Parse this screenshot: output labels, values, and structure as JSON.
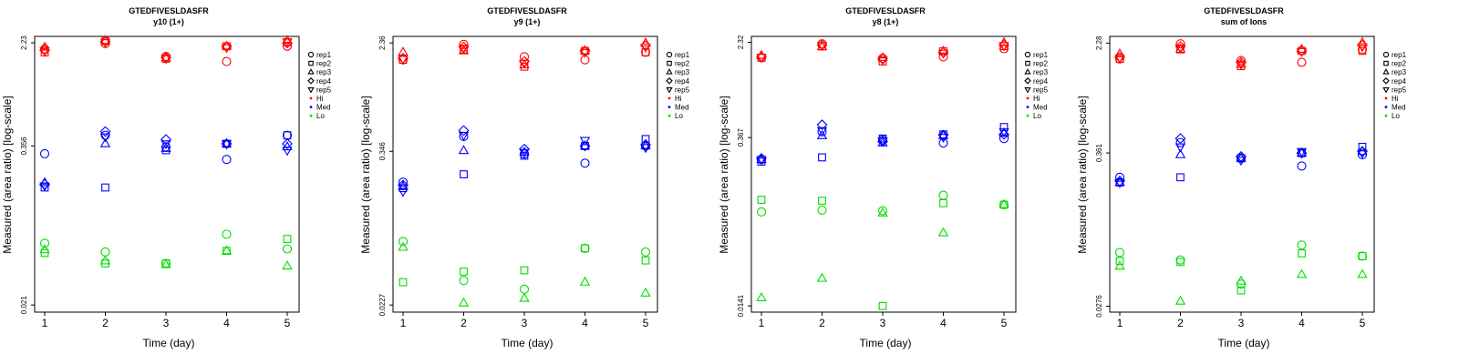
{
  "chart_data": [
    {
      "type": "scatter",
      "title": "GTEDFIVESLDASFR",
      "subtitle": "y10 (1+)",
      "xlabel": "Time (day)",
      "ylabel": "Measured (area ratio) [log-scale]",
      "x_ticks": [
        "1",
        "2",
        "3",
        "4",
        "5"
      ],
      "y_scale": "log",
      "y_ticks": [
        {
          "value": 2.23,
          "label": "2.23"
        },
        {
          "value": 0.356,
          "label": "0.356"
        },
        {
          "value": 0.021,
          "label": "0.021"
        }
      ],
      "ylim": [
        0.0185,
        2.5
      ],
      "legend": {
        "position": "right",
        "shapes": [
          "rep1",
          "rep2",
          "rep3",
          "rep4",
          "rep5"
        ],
        "colors": [
          {
            "label": "Hi",
            "color": "#ff0000"
          },
          {
            "label": "Med",
            "color": "#0000ff"
          },
          {
            "label": "Lo",
            "color": "#00dd00"
          }
        ]
      },
      "series": [
        {
          "group": "Hi",
          "rep": "rep1",
          "values": [
            2.0,
            2.2,
            1.75,
            1.6,
            2.1
          ]
        },
        {
          "group": "Hi",
          "rep": "rep2",
          "values": [
            1.88,
            2.3,
            1.68,
            2.1,
            2.25
          ]
        },
        {
          "group": "Hi",
          "rep": "rep3",
          "values": [
            2.06,
            2.32,
            1.7,
            2.1,
            2.32
          ]
        },
        {
          "group": "Hi",
          "rep": "rep4",
          "values": [
            1.95,
            2.28,
            1.72,
            2.08,
            2.22
          ]
        },
        {
          "group": "Hi",
          "rep": "rep5",
          "values": [
            1.93,
            2.25,
            1.69,
            2.05,
            2.28
          ]
        },
        {
          "group": "Med",
          "rep": "rep1",
          "values": [
            0.31,
            0.43,
            0.35,
            0.28,
            0.43
          ]
        },
        {
          "group": "Med",
          "rep": "rep2",
          "values": [
            0.17,
            0.17,
            0.33,
            0.37,
            0.43
          ]
        },
        {
          "group": "Med",
          "rep": "rep3",
          "values": [
            0.185,
            0.37,
            0.34,
            0.37,
            0.35
          ]
        },
        {
          "group": "Med",
          "rep": "rep4",
          "values": [
            0.18,
            0.46,
            0.4,
            0.37,
            0.37
          ]
        },
        {
          "group": "Med",
          "rep": "rep5",
          "values": [
            0.175,
            0.42,
            0.37,
            0.37,
            0.33
          ]
        },
        {
          "group": "Lo",
          "rep": "rep1",
          "values": [
            0.063,
            0.054,
            0.044,
            0.074,
            0.057
          ]
        },
        {
          "group": "Lo",
          "rep": "rep2",
          "values": [
            0.053,
            0.044,
            0.044,
            0.055,
            0.068
          ]
        },
        {
          "group": "Lo",
          "rep": "rep3",
          "values": [
            0.056,
            0.046,
            0.043,
            0.055,
            0.042
          ]
        }
      ]
    },
    {
      "type": "scatter",
      "title": "GTEDFIVESLDASFR",
      "subtitle": "y9 (1+)",
      "xlabel": "Time (day)",
      "ylabel": "Measured (area ratio) [log-scale]",
      "x_ticks": [
        "1",
        "2",
        "3",
        "4",
        "5"
      ],
      "y_scale": "log",
      "y_ticks": [
        {
          "value": 2.36,
          "label": "2.36"
        },
        {
          "value": 0.346,
          "label": "0.346"
        },
        {
          "value": 0.0227,
          "label": "0.0227"
        }
      ],
      "ylim": [
        0.02,
        2.65
      ],
      "legend": {
        "position": "right",
        "shapes": [
          "rep1",
          "rep2",
          "rep3",
          "rep4",
          "rep5"
        ],
        "colors": [
          {
            "label": "Hi",
            "color": "#ff0000"
          },
          {
            "label": "Med",
            "color": "#0000ff"
          },
          {
            "label": "Lo",
            "color": "#00dd00"
          }
        ]
      },
      "series": [
        {
          "group": "Hi",
          "rep": "rep1",
          "values": [
            1.75,
            2.3,
            1.85,
            1.75,
            2.0
          ]
        },
        {
          "group": "Hi",
          "rep": "rep2",
          "values": [
            1.75,
            2.1,
            1.55,
            2.05,
            2.0
          ]
        },
        {
          "group": "Hi",
          "rep": "rep3",
          "values": [
            2.0,
            2.05,
            1.6,
            2.05,
            2.35
          ]
        },
        {
          "group": "Hi",
          "rep": "rep4",
          "values": [
            1.8,
            2.2,
            1.7,
            2.05,
            2.25
          ]
        },
        {
          "group": "Hi",
          "rep": "rep5",
          "values": [
            1.78,
            2.15,
            1.65,
            2.0,
            2.2
          ]
        },
        {
          "group": "Med",
          "rep": "rep1",
          "values": [
            0.2,
            0.45,
            0.33,
            0.28,
            0.38
          ]
        },
        {
          "group": "Med",
          "rep": "rep2",
          "values": [
            0.18,
            0.23,
            0.32,
            0.38,
            0.43
          ]
        },
        {
          "group": "Med",
          "rep": "rep3",
          "values": [
            0.185,
            0.35,
            0.34,
            0.38,
            0.38
          ]
        },
        {
          "group": "Med",
          "rep": "rep4",
          "values": [
            0.19,
            0.5,
            0.36,
            0.38,
            0.39
          ]
        },
        {
          "group": "Med",
          "rep": "rep5",
          "values": [
            0.17,
            0.46,
            0.34,
            0.42,
            0.37
          ]
        },
        {
          "group": "Lo",
          "rep": "rep1",
          "values": [
            0.07,
            0.035,
            0.03,
            0.062,
            0.058
          ]
        },
        {
          "group": "Lo",
          "rep": "rep2",
          "values": [
            0.034,
            0.041,
            0.042,
            0.062,
            0.05
          ]
        },
        {
          "group": "Lo",
          "rep": "rep3",
          "values": [
            0.063,
            0.0235,
            0.0255,
            0.034,
            0.028
          ]
        }
      ]
    },
    {
      "type": "scatter",
      "title": "GTEDFIVESLDASFR",
      "subtitle": "y8 (1+)",
      "xlabel": "Time (day)",
      "ylabel": "Measured (area ratio) [log-scale]",
      "x_ticks": [
        "1",
        "2",
        "3",
        "4",
        "5"
      ],
      "y_scale": "log",
      "y_ticks": [
        {
          "value": 2.32,
          "label": "2.32"
        },
        {
          "value": 0.367,
          "label": "0.367"
        },
        {
          "value": 0.0141,
          "label": "0.0141"
        }
      ],
      "ylim": [
        0.0125,
        2.6
      ],
      "legend": {
        "position": "right",
        "shapes": [
          "rep1",
          "rep2",
          "rep3",
          "rep4",
          "rep5"
        ],
        "colors": [
          {
            "label": "Hi",
            "color": "#ff0000"
          },
          {
            "label": "Med",
            "color": "#0000ff"
          },
          {
            "label": "Lo",
            "color": "#00dd00"
          }
        ]
      },
      "series": [
        {
          "group": "Hi",
          "rep": "rep1",
          "values": [
            1.72,
            2.25,
            1.7,
            1.75,
            2.05
          ]
        },
        {
          "group": "Hi",
          "rep": "rep2",
          "values": [
            1.72,
            2.15,
            1.6,
            1.95,
            2.15
          ]
        },
        {
          "group": "Hi",
          "rep": "rep3",
          "values": [
            1.8,
            2.12,
            1.72,
            1.95,
            2.3
          ]
        },
        {
          "group": "Hi",
          "rep": "rep4",
          "values": [
            1.75,
            2.2,
            1.68,
            1.9,
            2.2
          ]
        },
        {
          "group": "Hi",
          "rep": "rep5",
          "values": [
            1.74,
            2.18,
            1.65,
            1.88,
            2.18
          ]
        },
        {
          "group": "Med",
          "rep": "rep1",
          "values": [
            0.24,
            0.41,
            0.35,
            0.33,
            0.36
          ]
        },
        {
          "group": "Med",
          "rep": "rep2",
          "values": [
            0.23,
            0.25,
            0.36,
            0.39,
            0.45
          ]
        },
        {
          "group": "Med",
          "rep": "rep3",
          "values": [
            0.24,
            0.38,
            0.33,
            0.38,
            0.4
          ]
        },
        {
          "group": "Med",
          "rep": "rep4",
          "values": [
            0.245,
            0.47,
            0.34,
            0.385,
            0.39
          ]
        },
        {
          "group": "Med",
          "rep": "rep5",
          "values": [
            0.24,
            0.42,
            0.345,
            0.37,
            0.41
          ]
        },
        {
          "group": "Lo",
          "rep": "rep1",
          "values": [
            0.087,
            0.09,
            0.089,
            0.12,
            0.1
          ]
        },
        {
          "group": "Lo",
          "rep": "rep2",
          "values": [
            0.11,
            0.108,
            0.0141,
            0.103,
            0.1
          ]
        },
        {
          "group": "Lo",
          "rep": "rep3",
          "values": [
            0.0165,
            0.024,
            0.085,
            0.058,
            0.1
          ]
        }
      ]
    },
    {
      "type": "scatter",
      "title": "GTEDFIVESLDASFR",
      "subtitle": "sum of Ions",
      "xlabel": "Time (day)",
      "ylabel": "Measured (area ratio) [log-scale]",
      "x_ticks": [
        "1",
        "2",
        "3",
        "4",
        "5"
      ],
      "y_scale": "log",
      "y_ticks": [
        {
          "value": 2.28,
          "label": "2.28"
        },
        {
          "value": 0.361,
          "label": "0.361"
        },
        {
          "value": 0.0276,
          "label": "0.0276"
        }
      ],
      "ylim": [
        0.025,
        2.55
      ],
      "legend": {
        "position": "right",
        "shapes": [
          "rep1",
          "rep2",
          "rep3",
          "rep4",
          "rep5"
        ],
        "colors": [
          {
            "label": "Hi",
            "color": "#ff0000"
          },
          {
            "label": "Med",
            "color": "#0000ff"
          },
          {
            "label": "Lo",
            "color": "#00dd00"
          }
        ]
      },
      "series": [
        {
          "group": "Hi",
          "rep": "rep1",
          "values": [
            1.75,
            2.25,
            1.7,
            1.65,
            2.05
          ]
        },
        {
          "group": "Hi",
          "rep": "rep2",
          "values": [
            1.75,
            2.05,
            1.55,
            2.0,
            2.0
          ]
        },
        {
          "group": "Hi",
          "rep": "rep3",
          "values": [
            1.9,
            2.05,
            1.6,
            2.05,
            2.3
          ]
        },
        {
          "group": "Hi",
          "rep": "rep4",
          "values": [
            1.8,
            2.15,
            1.65,
            2.0,
            2.2
          ]
        },
        {
          "group": "Hi",
          "rep": "rep5",
          "values": [
            1.78,
            2.1,
            1.6,
            1.98,
            2.15
          ]
        },
        {
          "group": "Med",
          "rep": "rep1",
          "values": [
            0.24,
            0.43,
            0.33,
            0.29,
            0.35
          ]
        },
        {
          "group": "Med",
          "rep": "rep2",
          "values": [
            0.22,
            0.24,
            0.33,
            0.36,
            0.4
          ]
        },
        {
          "group": "Med",
          "rep": "rep3",
          "values": [
            0.22,
            0.35,
            0.33,
            0.36,
            0.37
          ]
        },
        {
          "group": "Med",
          "rep": "rep4",
          "values": [
            0.225,
            0.46,
            0.34,
            0.36,
            0.37
          ]
        },
        {
          "group": "Med",
          "rep": "rep5",
          "values": [
            0.22,
            0.4,
            0.32,
            0.37,
            0.36
          ]
        },
        {
          "group": "Lo",
          "rep": "rep1",
          "values": [
            0.068,
            0.06,
            0.04,
            0.077,
            0.064
          ]
        },
        {
          "group": "Lo",
          "rep": "rep2",
          "values": [
            0.059,
            0.058,
            0.036,
            0.067,
            0.064
          ]
        },
        {
          "group": "Lo",
          "rep": "rep3",
          "values": [
            0.054,
            0.03,
            0.042,
            0.047,
            0.047
          ]
        }
      ]
    }
  ]
}
